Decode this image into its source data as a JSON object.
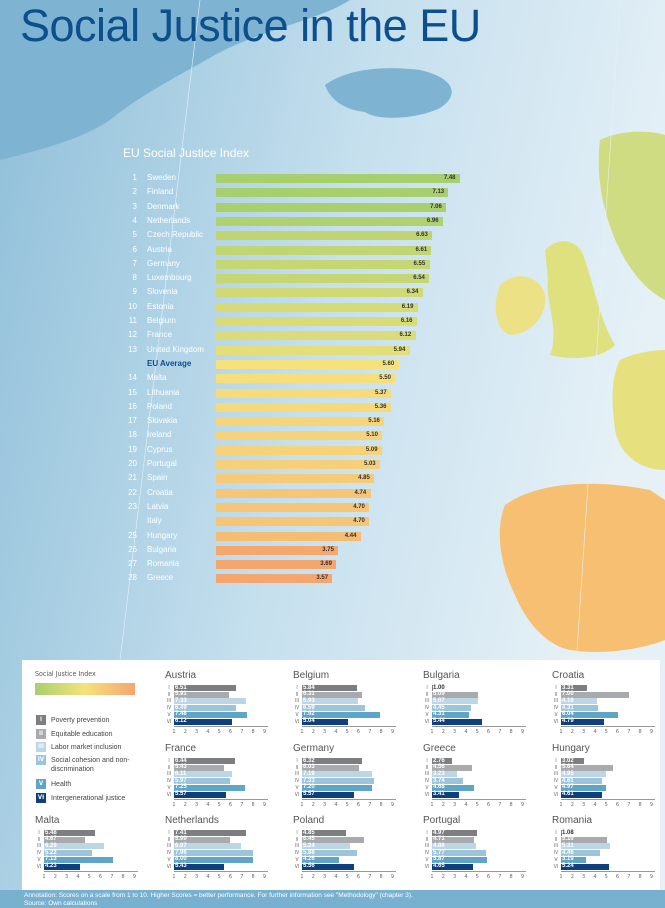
{
  "title": "Social Justice in the EU",
  "colors": {
    "title": "#0b4f8d",
    "index_green": "#a8cf6e",
    "index_yellow": "#f6e27c",
    "index_orange": "#f5a56e",
    "dim_I": "#7d7e80",
    "dim_II": "#a9aaad",
    "dim_III": "#bcd6e6",
    "dim_IV": "#9cc5dc",
    "dim_V": "#5fa5c8",
    "dim_VI": "#0f3f7c"
  },
  "chart_data": [
    {
      "type": "bar",
      "orientation": "horizontal",
      "title": "EU Social Justice Index",
      "rows": [
        {
          "rank": "1",
          "name": "Sweden",
          "value": 7.48
        },
        {
          "rank": "2",
          "name": "Finland",
          "value": 7.13
        },
        {
          "rank": "3",
          "name": "Denmark",
          "value": 7.06
        },
        {
          "rank": "4",
          "name": "Netherlands",
          "value": 6.96
        },
        {
          "rank": "5",
          "name": "Czech Republic",
          "value": 6.63
        },
        {
          "rank": "6",
          "name": "Austria",
          "value": 6.61
        },
        {
          "rank": "7",
          "name": "Germany",
          "value": 6.55
        },
        {
          "rank": "8",
          "name": "Luxembourg",
          "value": 6.54
        },
        {
          "rank": "9",
          "name": "Slovenia",
          "value": 6.34
        },
        {
          "rank": "10",
          "name": "Estonia",
          "value": 6.19
        },
        {
          "rank": "11",
          "name": "Belgium",
          "value": 6.16
        },
        {
          "rank": "12",
          "name": "France",
          "value": 6.12
        },
        {
          "rank": "13",
          "name": "United Kingdom",
          "value": 5.94
        },
        {
          "rank": "",
          "name": "EU Average",
          "value": 5.6,
          "average": true
        },
        {
          "rank": "14",
          "name": "Malta",
          "value": 5.5
        },
        {
          "rank": "15",
          "name": "Lithuania",
          "value": 5.37
        },
        {
          "rank": "16",
          "name": "Poland",
          "value": 5.36
        },
        {
          "rank": "17",
          "name": "Slovakia",
          "value": 5.16
        },
        {
          "rank": "18",
          "name": "Ireland",
          "value": 5.1
        },
        {
          "rank": "19",
          "name": "Cyprus",
          "value": 5.09
        },
        {
          "rank": "20",
          "name": "Portugal",
          "value": 5.03
        },
        {
          "rank": "21",
          "name": "Spain",
          "value": 4.85
        },
        {
          "rank": "22",
          "name": "Croatia",
          "value": 4.74
        },
        {
          "rank": "23",
          "name": "Latvia",
          "value": 4.7
        },
        {
          "rank": "",
          "name": "Italy",
          "value": 4.7
        },
        {
          "rank": "25",
          "name": "Hungary",
          "value": 4.44
        },
        {
          "rank": "26",
          "name": "Bulgaria",
          "value": 3.75
        },
        {
          "rank": "27",
          "name": "Romania",
          "value": 3.69
        },
        {
          "rank": "28",
          "name": "Greece",
          "value": 3.57
        }
      ]
    },
    {
      "type": "bar",
      "orientation": "horizontal",
      "small_multiples": true,
      "categories": [
        "I",
        "II",
        "III",
        "IV",
        "V",
        "VI"
      ],
      "x_ticks": [
        "1",
        "2",
        "3",
        "4",
        "5",
        "6",
        "7",
        "8",
        "9"
      ],
      "xlim": [
        1,
        9
      ],
      "panels": [
        {
          "country": "Austria",
          "values": [
            6.51,
            5.91,
            7.33,
            6.49,
            7.48,
            6.12
          ]
        },
        {
          "country": "Belgium",
          "values": [
            5.84,
            6.31,
            5.93,
            6.59,
            7.92,
            5.04
          ]
        },
        {
          "country": "Bulgaria",
          "values": [
            1.0,
            5.09,
            5.07,
            4.45,
            4.31,
            5.44
          ]
        },
        {
          "country": "Croatia",
          "values": [
            3.31,
            7.0,
            4.16,
            4.31,
            6.04,
            4.79
          ]
        },
        {
          "country": "France",
          "values": [
            6.44,
            5.43,
            6.11,
            5.97,
            7.25,
            5.57
          ]
        },
        {
          "country": "Germany",
          "values": [
            6.32,
            6.03,
            7.19,
            7.33,
            7.2,
            5.57
          ]
        },
        {
          "country": "Greece",
          "values": [
            2.76,
            4.56,
            3.23,
            3.74,
            4.68,
            3.41
          ]
        },
        {
          "country": "Hungary",
          "values": [
            3.02,
            5.64,
            4.95,
            4.61,
            4.97,
            4.61
          ]
        },
        {
          "country": "Malta",
          "values": [
            5.48,
            4.67,
            6.29,
            5.22,
            7.13,
            4.23
          ]
        },
        {
          "country": "Netherlands",
          "values": [
            7.41,
            5.99,
            6.97,
            7.96,
            8.0,
            5.43
          ]
        },
        {
          "country": "Poland",
          "values": [
            4.85,
            6.45,
            5.24,
            5.88,
            4.26,
            5.56
          ]
        },
        {
          "country": "Portugal",
          "values": [
            4.97,
            4.71,
            4.86,
            5.77,
            5.87,
            4.65
          ]
        },
        {
          "country": "Romania",
          "values": [
            1.08,
            5.1,
            5.31,
            4.46,
            3.19,
            5.24
          ]
        }
      ]
    }
  ],
  "legend": {
    "index_label": "Social Justice Index",
    "dimensions": [
      {
        "numeral": "I",
        "label": "Poverty prevention"
      },
      {
        "numeral": "II",
        "label": "Equitable education"
      },
      {
        "numeral": "III",
        "label": "Labor market inclusion"
      },
      {
        "numeral": "IV",
        "label": "Social cohesion and non-discrimination"
      },
      {
        "numeral": "V",
        "label": "Health"
      },
      {
        "numeral": "VI",
        "label": "Intergenerational justice"
      }
    ]
  },
  "footer": {
    "annotation": "Annotation: Scores on a scale from 1 to 10. Higher Scores = better performance. For further information see \"Methodology\" (chapter 3).",
    "source": "Source: Own calculations"
  }
}
